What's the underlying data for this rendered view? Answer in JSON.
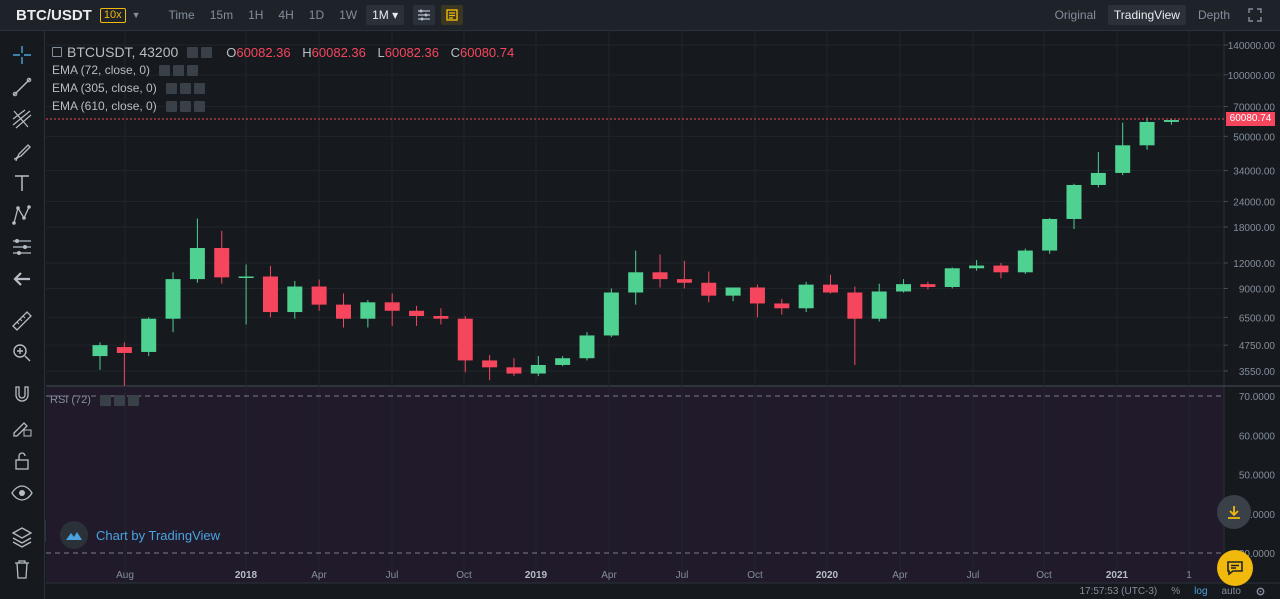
{
  "header": {
    "pair": "BTC/USDT",
    "leverage": "10x",
    "intervals": [
      "Time",
      "15m",
      "1H",
      "4H",
      "1D",
      "1W",
      "1M"
    ],
    "active_interval": "1M",
    "views": [
      "Original",
      "TradingView",
      "Depth"
    ],
    "active_view": "TradingView"
  },
  "legend": {
    "symbol": "BTCUSDT, 43200",
    "o_label": "O",
    "o_value": "60082.36",
    "h_label": "H",
    "h_value": "60082.36",
    "l_label": "L",
    "l_value": "60082.36",
    "c_label": "C",
    "c_value": "60080.74",
    "ema1": "EMA (72, close, 0)",
    "ema2": "EMA (305, close, 0)",
    "ema3": "EMA (610, close, 0)",
    "rsi": "RSI (72)"
  },
  "watermark": "Chart by TradingView",
  "colors": {
    "up": "#4fd192",
    "down": "#f6465d",
    "bg": "#161a1e",
    "rsi_bg": "#211a2b"
  },
  "chart_data": {
    "type": "candlestick",
    "price_axis_labels": [
      "140000.00",
      "100000.00",
      "70000.00",
      "50000.00",
      "34000.00",
      "24000.00",
      "18000.00",
      "12000.00",
      "9000.00",
      "6500.00",
      "4750.00",
      "3550.00"
    ],
    "price_axis_values": [
      140000,
      100000,
      70000,
      50000,
      34000,
      24000,
      18000,
      12000,
      9000,
      6500,
      4750,
      3550
    ],
    "log_scale": true,
    "last_price": "60080.74",
    "rsi_axis_labels": [
      "70.0000",
      "60.0000",
      "50.0000",
      "40.0000",
      "30.0000"
    ],
    "time_axis_labels": [
      "Aug",
      "2018",
      "Apr",
      "Jul",
      "Oct",
      "2019",
      "Apr",
      "Jul",
      "Oct",
      "2020",
      "Apr",
      "Jul",
      "Oct",
      "2021",
      "1"
    ],
    "candles": [
      {
        "o": 4200,
        "h": 4900,
        "l": 3600,
        "c": 4750
      },
      {
        "o": 4650,
        "h": 4900,
        "l": 3000,
        "c": 4350
      },
      {
        "o": 4400,
        "h": 6500,
        "l": 4200,
        "c": 6400
      },
      {
        "o": 6400,
        "h": 10800,
        "l": 5500,
        "c": 10000
      },
      {
        "o": 10000,
        "h": 19800,
        "l": 9600,
        "c": 14200
      },
      {
        "o": 14200,
        "h": 17200,
        "l": 9500,
        "c": 10200
      },
      {
        "o": 10200,
        "h": 11800,
        "l": 6000,
        "c": 10300
      },
      {
        "o": 10300,
        "h": 11600,
        "l": 6500,
        "c": 6900
      },
      {
        "o": 6900,
        "h": 9800,
        "l": 6400,
        "c": 9200
      },
      {
        "o": 9200,
        "h": 9950,
        "l": 7000,
        "c": 7500
      },
      {
        "o": 7500,
        "h": 8500,
        "l": 5800,
        "c": 6400
      },
      {
        "o": 6400,
        "h": 7900,
        "l": 5800,
        "c": 7700
      },
      {
        "o": 7700,
        "h": 8500,
        "l": 5900,
        "c": 7000
      },
      {
        "o": 7000,
        "h": 7400,
        "l": 5900,
        "c": 6600
      },
      {
        "o": 6600,
        "h": 7200,
        "l": 6000,
        "c": 6400
      },
      {
        "o": 6400,
        "h": 6600,
        "l": 3500,
        "c": 4000
      },
      {
        "o": 4000,
        "h": 4250,
        "l": 3200,
        "c": 3700
      },
      {
        "o": 3700,
        "h": 4100,
        "l": 3350,
        "c": 3450
      },
      {
        "o": 3450,
        "h": 4200,
        "l": 3350,
        "c": 3800
      },
      {
        "o": 3800,
        "h": 4200,
        "l": 3750,
        "c": 4100
      },
      {
        "o": 4100,
        "h": 5500,
        "l": 4000,
        "c": 5300
      },
      {
        "o": 5300,
        "h": 9000,
        "l": 5200,
        "c": 8600
      },
      {
        "o": 8600,
        "h": 13800,
        "l": 7500,
        "c": 10800
      },
      {
        "o": 10800,
        "h": 13200,
        "l": 9100,
        "c": 10000
      },
      {
        "o": 10000,
        "h": 12300,
        "l": 9000,
        "c": 9600
      },
      {
        "o": 9600,
        "h": 10900,
        "l": 7700,
        "c": 8300
      },
      {
        "o": 8300,
        "h": 9100,
        "l": 7800,
        "c": 9100
      },
      {
        "o": 9100,
        "h": 9400,
        "l": 6500,
        "c": 7600
      },
      {
        "o": 7600,
        "h": 8000,
        "l": 6700,
        "c": 7200
      },
      {
        "o": 7200,
        "h": 9700,
        "l": 6900,
        "c": 9400
      },
      {
        "o": 9400,
        "h": 10500,
        "l": 8500,
        "c": 8600
      },
      {
        "o": 8600,
        "h": 9200,
        "l": 3800,
        "c": 6400
      },
      {
        "o": 6400,
        "h": 9500,
        "l": 6200,
        "c": 8700
      },
      {
        "o": 8700,
        "h": 10000,
        "l": 8600,
        "c": 9450
      },
      {
        "o": 9450,
        "h": 9700,
        "l": 8900,
        "c": 9150
      },
      {
        "o": 9150,
        "h": 11400,
        "l": 9000,
        "c": 11300
      },
      {
        "o": 11300,
        "h": 12400,
        "l": 11000,
        "c": 11650
      },
      {
        "o": 11650,
        "h": 12000,
        "l": 10100,
        "c": 10800
      },
      {
        "o": 10800,
        "h": 14100,
        "l": 10600,
        "c": 13800
      },
      {
        "o": 13800,
        "h": 19900,
        "l": 13300,
        "c": 19700
      },
      {
        "o": 19700,
        "h": 29300,
        "l": 17600,
        "c": 28900
      },
      {
        "o": 28900,
        "h": 41900,
        "l": 28100,
        "c": 33100
      },
      {
        "o": 33100,
        "h": 58300,
        "l": 32300,
        "c": 45200
      },
      {
        "o": 45200,
        "h": 61800,
        "l": 43000,
        "c": 58800
      },
      {
        "o": 58800,
        "h": 60500,
        "l": 57000,
        "c": 60080
      }
    ]
  },
  "footer": {
    "time": "17:57:53 (UTC-3)",
    "percent": "%",
    "log": "log",
    "auto": "auto"
  }
}
